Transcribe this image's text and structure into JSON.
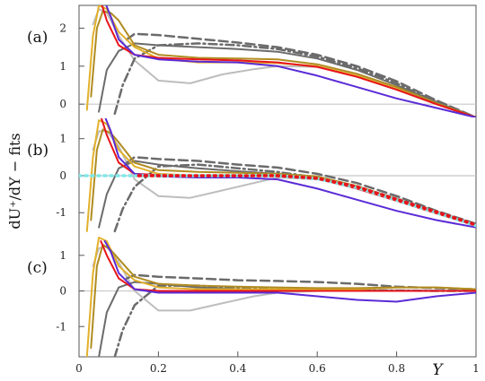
{
  "chart_data": {
    "type": "line",
    "ylabel": "dU⁺/dY − fits",
    "xlabel": "Y",
    "xlim": [
      0,
      1
    ],
    "x_ticks": [
      "0",
      "0.2",
      "0.4",
      "0.6",
      "0.8",
      "1"
    ],
    "x_tick_values": [
      0,
      0.2,
      0.4,
      0.6,
      0.8,
      1
    ],
    "colors": {
      "light_gray": "#bdbdbd",
      "dark_gray": "#6b6b6b",
      "blue_violet": "#5b2bd6",
      "red": "#e8141a",
      "gold": "#e2b02a",
      "olive": "#b08c22",
      "cyan": "#80e8e8",
      "zero_line": "#c8c8c8"
    },
    "panels": [
      {
        "label": "(a)",
        "ylim": [
          -0.35,
          2.6
        ],
        "y_ticks": [
          "0",
          "1",
          "2"
        ],
        "y_tick_values": [
          0,
          1,
          2
        ],
        "series": [
          {
            "color": "light_gray",
            "dash": "solid",
            "x": [
              0.035,
              0.05,
              0.07,
              0.1,
              0.14,
              0.2,
              0.28,
              0.36,
              0.44,
              0.5,
              0.6,
              0.7,
              0.8,
              0.9,
              1.0
            ],
            "y": [
              2.1,
              2.5,
              2.4,
              1.8,
              1.15,
              0.62,
              0.55,
              0.78,
              0.92,
              1.0,
              0.98,
              0.75,
              0.45,
              0.08,
              -0.35
            ]
          },
          {
            "color": "dark_gray",
            "dash": "solid",
            "x": [
              0.05,
              0.07,
              0.1,
              0.14,
              0.2,
              0.3,
              0.4,
              0.5,
              0.6,
              0.7,
              0.8,
              0.9,
              1.0
            ],
            "y": [
              -0.2,
              0.9,
              1.4,
              1.6,
              1.55,
              1.5,
              1.45,
              1.38,
              1.2,
              0.9,
              0.5,
              0.05,
              -0.35
            ]
          },
          {
            "color": "dark_gray",
            "dash": "dashdot",
            "x": [
              0.09,
              0.11,
              0.14,
              0.2,
              0.3,
              0.4,
              0.5,
              0.6,
              0.7,
              0.8,
              0.9,
              1.0
            ],
            "y": [
              -0.25,
              0.5,
              1.2,
              1.55,
              1.6,
              1.55,
              1.45,
              1.25,
              0.95,
              0.55,
              0.05,
              -0.35
            ]
          },
          {
            "color": "dark_gray",
            "dash": "dashed",
            "x": [
              0.12,
              0.14,
              0.2,
              0.3,
              0.4,
              0.5,
              0.6,
              0.7,
              0.8,
              0.9,
              1.0
            ],
            "y": [
              1.7,
              1.85,
              1.82,
              1.72,
              1.62,
              1.5,
              1.3,
              1.0,
              0.6,
              0.1,
              -0.35
            ]
          },
          {
            "color": "gold",
            "dash": "solid",
            "x": [
              0.02,
              0.035,
              0.05,
              0.07,
              0.1,
              0.14,
              0.2,
              0.3,
              0.4,
              0.5,
              0.6,
              0.7,
              0.8,
              0.9,
              1.0
            ],
            "y": [
              -0.15,
              1.8,
              2.6,
              2.5,
              1.9,
              1.5,
              1.2,
              1.1,
              1.1,
              1.08,
              1.0,
              0.75,
              0.4,
              0.0,
              -0.35
            ]
          },
          {
            "color": "olive",
            "dash": "solid",
            "x": [
              0.03,
              0.045,
              0.06,
              0.08,
              0.1,
              0.14,
              0.2,
              0.3,
              0.4,
              0.5,
              0.6,
              0.7,
              0.8,
              0.9,
              1.0
            ],
            "y": [
              0.2,
              2.0,
              2.45,
              2.4,
              2.2,
              1.55,
              1.3,
              1.22,
              1.2,
              1.18,
              1.05,
              0.8,
              0.45,
              0.03,
              -0.35
            ]
          },
          {
            "color": "red",
            "dash": "solid",
            "x": [
              0.055,
              0.07,
              0.1,
              0.14,
              0.2,
              0.3,
              0.4,
              0.5,
              0.6,
              0.7,
              0.8,
              0.9,
              1.0
            ],
            "y": [
              2.7,
              2.2,
              1.55,
              1.3,
              1.22,
              1.18,
              1.15,
              1.1,
              0.98,
              0.72,
              0.38,
              0.0,
              -0.35
            ]
          },
          {
            "color": "blue_violet",
            "dash": "solid",
            "x": [
              0.065,
              0.08,
              0.1,
              0.14,
              0.2,
              0.3,
              0.4,
              0.5,
              0.6,
              0.7,
              0.8,
              0.9,
              1.0
            ],
            "y": [
              2.7,
              2.3,
              1.7,
              1.3,
              1.18,
              1.12,
              1.1,
              1.0,
              0.75,
              0.45,
              0.15,
              -0.1,
              -0.35
            ]
          }
        ]
      },
      {
        "label": "(b)",
        "ylim": [
          -1.6,
          1.55
        ],
        "y_ticks": [
          "-1",
          "0",
          "1"
        ],
        "y_tick_values": [
          -1,
          0,
          1
        ],
        "series": [
          {
            "color": "light_gray",
            "dash": "solid",
            "x": [
              0.035,
              0.05,
              0.07,
              0.1,
              0.14,
              0.2,
              0.28,
              0.36,
              0.44,
              0.5,
              0.6,
              0.7,
              0.8,
              0.9,
              1.0
            ],
            "y": [
              0.7,
              1.2,
              1.2,
              0.8,
              -0.1,
              -0.55,
              -0.6,
              -0.4,
              -0.2,
              -0.05,
              -0.1,
              -0.3,
              -0.6,
              -0.95,
              -1.3
            ]
          },
          {
            "color": "dark_gray",
            "dash": "solid",
            "x": [
              0.05,
              0.07,
              0.1,
              0.14,
              0.2,
              0.3,
              0.4,
              0.5,
              0.6,
              0.7,
              0.8,
              0.9,
              1.0
            ],
            "y": [
              -1.4,
              -0.5,
              0.2,
              0.4,
              0.3,
              0.2,
              0.12,
              0.05,
              -0.05,
              -0.3,
              -0.65,
              -1.0,
              -1.35
            ]
          },
          {
            "color": "dark_gray",
            "dash": "dashdot",
            "x": [
              0.09,
              0.11,
              0.14,
              0.2,
              0.3,
              0.4,
              0.5,
              0.6,
              0.7,
              0.8,
              0.9,
              1.0
            ],
            "y": [
              -1.5,
              -0.9,
              -0.3,
              0.25,
              0.3,
              0.2,
              0.1,
              -0.05,
              -0.3,
              -0.65,
              -1.0,
              -1.35
            ]
          },
          {
            "color": "dark_gray",
            "dash": "dashed",
            "x": [
              0.12,
              0.14,
              0.2,
              0.3,
              0.4,
              0.5,
              0.6,
              0.7,
              0.8,
              0.9,
              1.0
            ],
            "y": [
              0.35,
              0.5,
              0.45,
              0.4,
              0.3,
              0.22,
              0.05,
              -0.2,
              -0.55,
              -0.95,
              -1.3
            ]
          },
          {
            "color": "gold",
            "dash": "solid",
            "x": [
              0.02,
              0.035,
              0.05,
              0.07,
              0.1,
              0.14,
              0.2,
              0.3,
              0.4,
              0.5,
              0.6,
              0.7,
              0.8,
              0.9,
              1.0
            ],
            "y": [
              -1.5,
              0.5,
              1.5,
              1.4,
              0.7,
              0.25,
              0.05,
              0.0,
              0.0,
              0.0,
              -0.05,
              -0.3,
              -0.65,
              -1.0,
              -1.35
            ]
          },
          {
            "color": "olive",
            "dash": "solid",
            "x": [
              0.03,
              0.045,
              0.06,
              0.08,
              0.1,
              0.14,
              0.2,
              0.3,
              0.4,
              0.5,
              0.6,
              0.7,
              0.8,
              0.9,
              1.0
            ],
            "y": [
              -1.2,
              0.7,
              1.25,
              1.15,
              0.9,
              0.35,
              0.15,
              0.1,
              0.08,
              0.05,
              -0.02,
              -0.28,
              -0.63,
              -1.0,
              -1.35
            ]
          },
          {
            "color": "red",
            "dash": "solid",
            "x": [
              0.055,
              0.07,
              0.1,
              0.14,
              0.2,
              0.3,
              0.4,
              0.5,
              0.6,
              0.7,
              0.8,
              0.9,
              1.0
            ],
            "y": [
              1.6,
              1.1,
              0.35,
              0.05,
              0.02,
              0.0,
              0.0,
              0.0,
              -0.08,
              -0.35,
              -0.68,
              -1.02,
              -1.35
            ]
          },
          {
            "color": "blue_violet",
            "dash": "solid",
            "x": [
              0.065,
              0.08,
              0.1,
              0.14,
              0.2,
              0.3,
              0.4,
              0.5,
              0.6,
              0.7,
              0.8,
              0.9,
              1.0
            ],
            "y": [
              1.6,
              1.2,
              0.5,
              0.05,
              -0.02,
              -0.05,
              -0.05,
              -0.1,
              -0.35,
              -0.65,
              -0.95,
              -1.2,
              -1.4
            ]
          },
          {
            "color": "cyan",
            "dash": "dotted",
            "x": [
              0.0,
              0.1,
              0.2,
              0.3,
              0.4,
              0.5,
              0.6,
              0.7,
              0.8,
              0.9,
              1.0
            ],
            "y": [
              0.0,
              0.0,
              0.0,
              0.0,
              0.0,
              0.0,
              -0.08,
              -0.32,
              -0.66,
              -1.0,
              -1.35
            ]
          },
          {
            "color": "red",
            "dash": "dotted",
            "x": [
              0.15,
              0.2,
              0.3,
              0.4,
              0.5,
              0.6,
              0.7,
              0.8,
              0.9,
              1.0
            ],
            "y": [
              0.0,
              0.0,
              0.0,
              0.0,
              0.0,
              -0.07,
              -0.3,
              -0.64,
              -0.98,
              -1.33
            ]
          }
        ]
      },
      {
        "label": "(c)",
        "ylim": [
          -1.85,
          1.55
        ],
        "y_ticks": [
          "-1",
          "0",
          "1"
        ],
        "y_tick_values": [
          -1,
          0,
          1
        ],
        "series": [
          {
            "color": "light_gray",
            "dash": "solid",
            "x": [
              0.035,
              0.05,
              0.07,
              0.1,
              0.14,
              0.2,
              0.28,
              0.36,
              0.44,
              0.5,
              0.6,
              0.7,
              0.8,
              0.9,
              1.0
            ],
            "y": [
              0.7,
              1.2,
              1.25,
              0.8,
              0.0,
              -0.55,
              -0.55,
              -0.35,
              -0.15,
              -0.05,
              0.0,
              0.02,
              0.02,
              0.01,
              0.0
            ]
          },
          {
            "color": "dark_gray",
            "dash": "solid",
            "x": [
              0.05,
              0.07,
              0.1,
              0.14,
              0.2,
              0.3,
              0.4,
              0.5,
              0.6,
              0.7,
              0.8,
              0.9,
              1.0
            ],
            "y": [
              -1.85,
              -0.6,
              0.1,
              0.25,
              0.2,
              0.1,
              0.05,
              0.03,
              0.02,
              0.01,
              0.0,
              0.0,
              0.0
            ]
          },
          {
            "color": "dark_gray",
            "dash": "dashdot",
            "x": [
              0.09,
              0.11,
              0.14,
              0.2,
              0.3,
              0.4,
              0.5,
              0.6,
              0.7,
              0.8,
              0.9,
              1.0
            ],
            "y": [
              -1.85,
              -1.1,
              -0.4,
              0.15,
              0.15,
              0.08,
              0.05,
              0.03,
              0.02,
              0.01,
              0.0,
              0.0
            ]
          },
          {
            "color": "dark_gray",
            "dash": "dashed",
            "x": [
              0.12,
              0.14,
              0.2,
              0.3,
              0.4,
              0.5,
              0.6,
              0.7,
              0.8,
              0.9,
              1.0
            ],
            "y": [
              0.35,
              0.45,
              0.4,
              0.35,
              0.3,
              0.28,
              0.25,
              0.2,
              0.12,
              0.08,
              0.05
            ]
          },
          {
            "color": "gold",
            "dash": "solid",
            "x": [
              0.02,
              0.035,
              0.05,
              0.07,
              0.1,
              0.14,
              0.2,
              0.3,
              0.4,
              0.5,
              0.6,
              0.7,
              0.8,
              0.9,
              1.0
            ],
            "y": [
              -1.85,
              0.5,
              1.5,
              1.4,
              0.7,
              0.3,
              0.1,
              0.05,
              0.05,
              0.05,
              0.05,
              0.05,
              0.1,
              0.1,
              0.05
            ]
          },
          {
            "color": "olive",
            "dash": "solid",
            "x": [
              0.03,
              0.045,
              0.06,
              0.08,
              0.1,
              0.14,
              0.2,
              0.3,
              0.4,
              0.5,
              0.6,
              0.7,
              0.8,
              0.9,
              1.0
            ],
            "y": [
              -1.6,
              0.7,
              1.3,
              1.15,
              0.9,
              0.4,
              0.2,
              0.15,
              0.12,
              0.1,
              0.08,
              0.08,
              0.1,
              0.1,
              0.05
            ]
          },
          {
            "color": "red",
            "dash": "solid",
            "x": [
              0.055,
              0.07,
              0.1,
              0.14,
              0.2,
              0.3,
              0.4,
              0.5,
              0.6,
              0.7,
              0.8,
              0.9,
              1.0
            ],
            "y": [
              1.4,
              1.0,
              0.35,
              0.05,
              0.0,
              0.0,
              0.0,
              0.0,
              0.0,
              0.0,
              0.0,
              0.0,
              0.0
            ]
          },
          {
            "color": "blue_violet",
            "dash": "solid",
            "x": [
              0.065,
              0.08,
              0.1,
              0.14,
              0.2,
              0.3,
              0.4,
              0.5,
              0.6,
              0.7,
              0.8,
              0.9,
              1.0
            ],
            "y": [
              1.4,
              1.1,
              0.5,
              0.05,
              -0.05,
              -0.05,
              -0.05,
              -0.05,
              -0.15,
              -0.25,
              -0.3,
              -0.15,
              -0.05
            ]
          }
        ]
      }
    ]
  }
}
